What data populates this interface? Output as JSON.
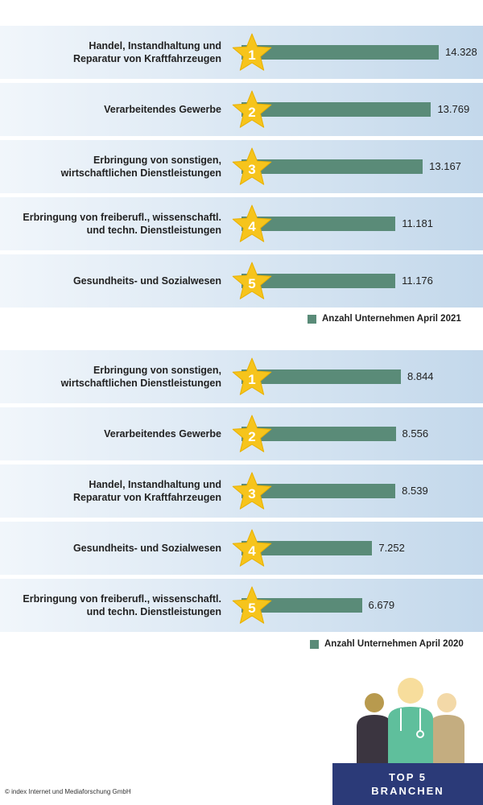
{
  "chart_data": [
    {
      "type": "bar",
      "orientation": "horizontal",
      "categories": [
        "Handel, Instandhaltung und\nReparatur von Kraftfahrzeugen",
        "Verarbeitendes Gewerbe",
        "Erbringung von sonstigen,\nwirtschaftlichen Dienstleistungen",
        "Erbringung von freiberufl., wissenschaftl.\nund techn. Dienstleistungen",
        "Gesundheits- und Sozialwesen"
      ],
      "ranks": [
        1,
        2,
        3,
        4,
        5
      ],
      "series": [
        {
          "name": "Anzahl Unternehmen April 2021",
          "color": "#5a8b78",
          "values": [
            14328,
            13769,
            13167,
            11181,
            11176
          ],
          "value_labels": [
            "14.328",
            "13.769",
            "13.167",
            "11.181",
            "11.176"
          ]
        }
      ]
    },
    {
      "type": "bar",
      "orientation": "horizontal",
      "categories": [
        "Erbringung von sonstigen,\nwirtschaftlichen Dienstleistungen",
        "Verarbeitendes Gewerbe",
        "Handel, Instandhaltung und\nReparatur von Kraftfahrzeugen",
        "Gesundheits- und Sozialwesen",
        "Erbringung von freiberufl., wissenschaftl.\nund techn. Dienstleistungen"
      ],
      "ranks": [
        1,
        2,
        3,
        4,
        5
      ],
      "series": [
        {
          "name": "Anzahl Unternehmen April 2020",
          "color": "#5a8b78",
          "values": [
            8844,
            8556,
            8539,
            7252,
            6679
          ],
          "value_labels": [
            "8.844",
            "8.556",
            "8.539",
            "7.252",
            "6.679"
          ]
        }
      ]
    }
  ],
  "footer": "© index Internet und Mediaforschung GmbH",
  "badge": {
    "line1": "TOP 5",
    "line2": "BRANCHEN"
  }
}
